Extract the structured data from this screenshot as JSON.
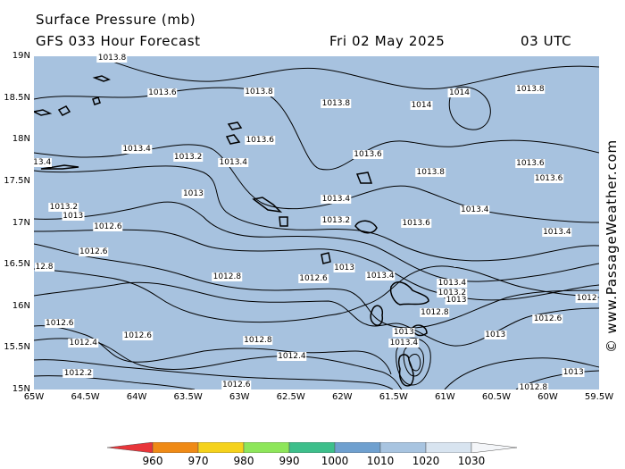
{
  "header": {
    "title": "Surface Pressure (mb)",
    "subtitle": "GFS 033 Hour Forecast",
    "date": "Fri 02 May 2025",
    "time": "03 UTC"
  },
  "credit": "© www.PassageWeather.com",
  "lat_labels": [
    "19N",
    "18.5N",
    "18N",
    "17.5N",
    "17N",
    "16.5N",
    "16N",
    "15.5N",
    "15N"
  ],
  "lon_labels": [
    "65W",
    "64.5W",
    "64W",
    "63.5W",
    "63W",
    "62.5W",
    "62W",
    "61.5W",
    "61W",
    "60.5W",
    "60W",
    "59.5W"
  ],
  "contour_labels": [
    {
      "text": "1013.8",
      "lon": -64.24,
      "lat": 18.98
    },
    {
      "text": "1013.6",
      "lon": -63.75,
      "lat": 18.56
    },
    {
      "text": "1013.8",
      "lon": -62.81,
      "lat": 18.57
    },
    {
      "text": "1013.8",
      "lon": -62.06,
      "lat": 18.43
    },
    {
      "text": "1014",
      "lon": -61.23,
      "lat": 18.41
    },
    {
      "text": "1014",
      "lon": -60.86,
      "lat": 18.56
    },
    {
      "text": "1013.8",
      "lon": -60.17,
      "lat": 18.6
    },
    {
      "text": "1013.6",
      "lon": -62.8,
      "lat": 17.99
    },
    {
      "text": "1013.4",
      "lon": -64.0,
      "lat": 17.89
    },
    {
      "text": "13.4",
      "lon": -64.92,
      "lat": 17.72
    },
    {
      "text": "1013.2",
      "lon": -63.5,
      "lat": 17.79
    },
    {
      "text": "1013.4",
      "lon": -63.06,
      "lat": 17.72
    },
    {
      "text": "1013.6",
      "lon": -61.75,
      "lat": 17.82
    },
    {
      "text": "1013.8",
      "lon": -61.14,
      "lat": 17.61
    },
    {
      "text": "1013.6",
      "lon": -60.17,
      "lat": 17.71
    },
    {
      "text": "1013.6",
      "lon": -59.99,
      "lat": 17.53
    },
    {
      "text": "1013",
      "lon": -63.45,
      "lat": 17.35
    },
    {
      "text": "1013.4",
      "lon": -62.06,
      "lat": 17.28
    },
    {
      "text": "1013.2",
      "lon": -64.71,
      "lat": 17.19
    },
    {
      "text": "1013",
      "lon": -64.62,
      "lat": 17.08
    },
    {
      "text": "1013.4",
      "lon": -60.71,
      "lat": 17.16
    },
    {
      "text": "1013.2",
      "lon": -62.06,
      "lat": 17.03
    },
    {
      "text": "1013.6",
      "lon": -61.28,
      "lat": 16.99
    },
    {
      "text": "1012.6",
      "lon": -64.28,
      "lat": 16.95
    },
    {
      "text": "1013.4",
      "lon": -59.91,
      "lat": 16.89
    },
    {
      "text": "1012.6",
      "lon": -64.42,
      "lat": 16.65
    },
    {
      "text": "1013",
      "lon": -61.98,
      "lat": 16.46
    },
    {
      "text": "12.8",
      "lon": -64.9,
      "lat": 16.47
    },
    {
      "text": "1012.8",
      "lon": -63.12,
      "lat": 16.35
    },
    {
      "text": "1012.6",
      "lon": -62.28,
      "lat": 16.33
    },
    {
      "text": "1013.4",
      "lon": -61.63,
      "lat": 16.36
    },
    {
      "text": "1012",
      "lon": -59.62,
      "lat": 16.09
    },
    {
      "text": "1013.4",
      "lon": -60.93,
      "lat": 16.28
    },
    {
      "text": "1013.2",
      "lon": -60.93,
      "lat": 16.16
    },
    {
      "text": "1013",
      "lon": -60.89,
      "lat": 16.07
    },
    {
      "text": "1012.8",
      "lon": -61.1,
      "lat": 15.92
    },
    {
      "text": "1012.6",
      "lon": -60.0,
      "lat": 15.85
    },
    {
      "text": "1012.6",
      "lon": -64.75,
      "lat": 15.79
    },
    {
      "text": "1012.4",
      "lon": -64.52,
      "lat": 15.56
    },
    {
      "text": "1012.6",
      "lon": -63.99,
      "lat": 15.64
    },
    {
      "text": "1012.8",
      "lon": -62.82,
      "lat": 15.59
    },
    {
      "text": "1013",
      "lon": -61.4,
      "lat": 15.69
    },
    {
      "text": "1013.4",
      "lon": -61.4,
      "lat": 15.56
    },
    {
      "text": "1013",
      "lon": -60.51,
      "lat": 15.65
    },
    {
      "text": "1012.4",
      "lon": -62.49,
      "lat": 15.4
    },
    {
      "text": "1013",
      "lon": -59.75,
      "lat": 15.2
    },
    {
      "text": "1012.2",
      "lon": -64.57,
      "lat": 15.19
    },
    {
      "text": "1012.6",
      "lon": -63.03,
      "lat": 15.05
    },
    {
      "text": "1012.8",
      "lon": -60.14,
      "lat": 15.02
    }
  ],
  "colorbar": {
    "labels": [
      "960",
      "970",
      "980",
      "990",
      "1000",
      "1010",
      "1020",
      "1030"
    ],
    "colors": [
      "#e8353a",
      "#ef8a16",
      "#f5d21c",
      "#8ee65a",
      "#3dbf8b",
      "#6fa0cf",
      "#a8c4e0",
      "#d8e4f0",
      "#f4f6f9"
    ]
  },
  "colors": {
    "ocean": "#a7c2df",
    "land_outline": "#000000",
    "contour": "#000000"
  }
}
